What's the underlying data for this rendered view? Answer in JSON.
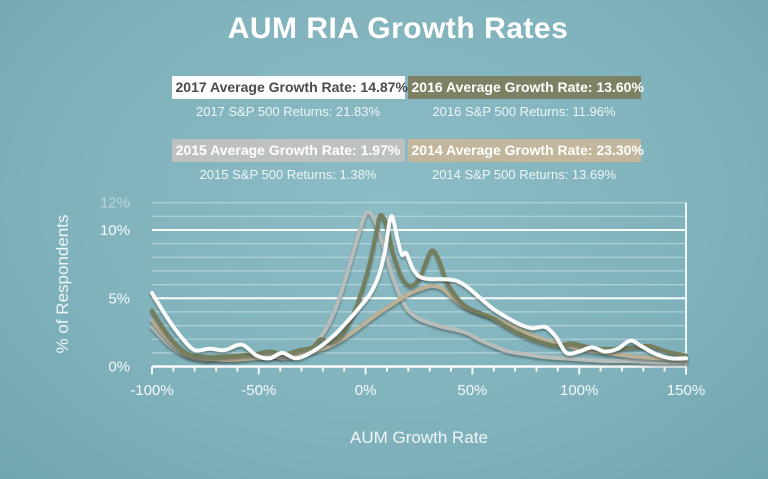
{
  "title": "AUM RIA Growth Rates",
  "legend": {
    "items": [
      {
        "year": "2017",
        "box_label": "2017 Average Growth Rate: 14.87%",
        "sub_label": "2017 S&P 500 Returns: 21.83%",
        "colors": {
          "box_bg": "#fdfdfd",
          "box_text": "#4b4b4d"
        }
      },
      {
        "year": "2016",
        "box_label": "2016 Average Growth Rate: 13.60%",
        "sub_label": "2016 S&P 500 Returns: 11.96%",
        "colors": {
          "box_bg": "#7d8164",
          "box_text": "#ffffff"
        }
      },
      {
        "year": "2015",
        "box_label": "2015 Average Growth Rate: 1.97%",
        "sub_label": "2015 S&P 500 Returns: 1.38%",
        "colors": {
          "box_bg": "#bdc2c0",
          "box_text": "#ffffff"
        }
      },
      {
        "year": "2014",
        "box_label": "2014 Average Growth Rate: 23.30%",
        "sub_label": "2014 S&P 500 Returns: 13.69%",
        "colors": {
          "box_bg": "#c2b79c",
          "box_text": "#ffffff"
        }
      }
    ]
  },
  "chart_data": {
    "type": "line",
    "title": "AUM RIA Growth Rates",
    "xlabel": "AUM Growth Rate",
    "ylabel": "% of Respondents",
    "x_unit": "% AUM growth",
    "y_unit": "% of respondents",
    "xlim": [
      -100,
      150
    ],
    "ylim": [
      0,
      12
    ],
    "grid": {
      "y_step": 1,
      "emphasized_y": [
        5,
        10
      ],
      "color_faint": "rgba(255,255,255,0.38)",
      "color_bright": "rgba(255,255,255,0.95)"
    },
    "x_ticks_major": [
      {
        "value": -100,
        "label": "-100%"
      },
      {
        "value": -50,
        "label": "-50%"
      },
      {
        "value": 0,
        "label": "0%"
      },
      {
        "value": 50,
        "label": "50%"
      },
      {
        "value": 100,
        "label": "100%"
      },
      {
        "value": 150,
        "label": "150%"
      }
    ],
    "x_tick_minor_step": 10,
    "y_axis_labels": [
      {
        "value": 0,
        "label": "0%",
        "faded": false
      },
      {
        "value": 5,
        "label": "5%",
        "faded": false
      },
      {
        "value": 10,
        "label": "10%",
        "faded": false
      },
      {
        "value": 12,
        "label": "12%",
        "faded": true
      }
    ],
    "legend_position": "top",
    "series": [
      {
        "name": "2015 growth-rate distribution",
        "year": "2015",
        "color": "#b7bdbb",
        "points": [
          [
            -100,
            2.9
          ],
          [
            -92,
            1.6
          ],
          [
            -84,
            0.8
          ],
          [
            -76,
            0.5
          ],
          [
            -68,
            0.6
          ],
          [
            -60,
            0.6
          ],
          [
            -53,
            0.8
          ],
          [
            -46,
            0.9
          ],
          [
            -39,
            0.6
          ],
          [
            -32,
            0.8
          ],
          [
            -26,
            1.3
          ],
          [
            -20,
            2.4
          ],
          [
            -15,
            3.9
          ],
          [
            -10,
            6.1
          ],
          [
            -5,
            8.8
          ],
          [
            -1,
            10.8
          ],
          [
            1,
            11.3
          ],
          [
            4,
            10.8
          ],
          [
            8,
            9.0
          ],
          [
            12,
            6.9
          ],
          [
            16,
            5.2
          ],
          [
            20,
            4.1
          ],
          [
            25,
            3.5
          ],
          [
            30,
            3.2
          ],
          [
            36,
            2.9
          ],
          [
            42,
            2.7
          ],
          [
            48,
            2.4
          ],
          [
            54,
            1.9
          ],
          [
            60,
            1.5
          ],
          [
            67,
            1.1
          ],
          [
            75,
            0.9
          ],
          [
            83,
            0.7
          ],
          [
            92,
            0.6
          ],
          [
            102,
            0.5
          ],
          [
            112,
            0.4
          ],
          [
            124,
            0.4
          ],
          [
            136,
            0.3
          ],
          [
            150,
            0.3
          ]
        ]
      },
      {
        "name": "2014 growth-rate distribution",
        "year": "2014",
        "color": "#bbb196",
        "points": [
          [
            -100,
            3.4
          ],
          [
            -92,
            1.9
          ],
          [
            -84,
            0.9
          ],
          [
            -76,
            0.6
          ],
          [
            -68,
            0.5
          ],
          [
            -60,
            0.5
          ],
          [
            -52,
            0.6
          ],
          [
            -44,
            0.7
          ],
          [
            -36,
            0.8
          ],
          [
            -28,
            1.0
          ],
          [
            -20,
            1.3
          ],
          [
            -13,
            1.8
          ],
          [
            -6,
            2.5
          ],
          [
            0,
            3.2
          ],
          [
            7,
            4.0
          ],
          [
            14,
            4.7
          ],
          [
            20,
            5.3
          ],
          [
            26,
            5.7
          ],
          [
            31,
            5.9
          ],
          [
            36,
            5.7
          ],
          [
            41,
            5.0
          ],
          [
            46,
            4.4
          ],
          [
            52,
            4.0
          ],
          [
            58,
            3.7
          ],
          [
            64,
            3.3
          ],
          [
            71,
            2.8
          ],
          [
            78,
            2.3
          ],
          [
            85,
            1.9
          ],
          [
            92,
            1.6
          ],
          [
            100,
            1.3
          ],
          [
            108,
            1.1
          ],
          [
            117,
            0.9
          ],
          [
            127,
            0.7
          ],
          [
            138,
            0.6
          ],
          [
            150,
            0.5
          ]
        ]
      },
      {
        "name": "2016 growth-rate distribution",
        "year": "2016",
        "color": "#747e5c",
        "points": [
          [
            -100,
            4.1
          ],
          [
            -92,
            2.2
          ],
          [
            -84,
            1.0
          ],
          [
            -76,
            0.7
          ],
          [
            -68,
            0.7
          ],
          [
            -60,
            0.8
          ],
          [
            -52,
            0.9
          ],
          [
            -45,
            1.1
          ],
          [
            -38,
            0.9
          ],
          [
            -31,
            1.2
          ],
          [
            -25,
            1.4
          ],
          [
            -21,
            2.0
          ],
          [
            -17,
            1.8
          ],
          [
            -12,
            2.2
          ],
          [
            -7,
            3.4
          ],
          [
            -2,
            5.4
          ],
          [
            2,
            7.6
          ],
          [
            5,
            9.8
          ],
          [
            7,
            11.1
          ],
          [
            10,
            10.2
          ],
          [
            13,
            8.2
          ],
          [
            17,
            6.5
          ],
          [
            21,
            5.9
          ],
          [
            25,
            6.4
          ],
          [
            28,
            7.5
          ],
          [
            31,
            8.5
          ],
          [
            34,
            7.9
          ],
          [
            38,
            6.2
          ],
          [
            43,
            5.0
          ],
          [
            48,
            4.3
          ],
          [
            54,
            3.9
          ],
          [
            60,
            3.5
          ],
          [
            66,
            2.9
          ],
          [
            72,
            2.4
          ],
          [
            78,
            2.0
          ],
          [
            84,
            1.7
          ],
          [
            90,
            1.5
          ],
          [
            96,
            1.7
          ],
          [
            102,
            1.5
          ],
          [
            110,
            1.3
          ],
          [
            118,
            1.3
          ],
          [
            126,
            1.4
          ],
          [
            133,
            1.5
          ],
          [
            141,
            1.1
          ],
          [
            150,
            0.8
          ]
        ]
      },
      {
        "name": "2017 growth-rate distribution",
        "year": "2017",
        "color": "#fafcfc",
        "points": [
          [
            -100,
            5.4
          ],
          [
            -93,
            3.6
          ],
          [
            -86,
            2.1
          ],
          [
            -80,
            1.2
          ],
          [
            -73,
            1.3
          ],
          [
            -66,
            1.2
          ],
          [
            -58,
            1.6
          ],
          [
            -51,
            0.8
          ],
          [
            -45,
            0.6
          ],
          [
            -39,
            1.0
          ],
          [
            -33,
            0.6
          ],
          [
            -27,
            0.9
          ],
          [
            -20,
            1.6
          ],
          [
            -14,
            2.4
          ],
          [
            -8,
            3.4
          ],
          [
            -3,
            4.3
          ],
          [
            2,
            5.3
          ],
          [
            6,
            6.6
          ],
          [
            9,
            8.4
          ],
          [
            12,
            11.0
          ],
          [
            15,
            9.3
          ],
          [
            17,
            8.2
          ],
          [
            19,
            8.3
          ],
          [
            22,
            7.2
          ],
          [
            25,
            6.6
          ],
          [
            30,
            6.4
          ],
          [
            36,
            6.4
          ],
          [
            42,
            6.3
          ],
          [
            47,
            5.9
          ],
          [
            53,
            5.1
          ],
          [
            59,
            4.3
          ],
          [
            65,
            3.7
          ],
          [
            72,
            3.1
          ],
          [
            78,
            2.8
          ],
          [
            84,
            2.9
          ],
          [
            89,
            2.2
          ],
          [
            94,
            1.0
          ],
          [
            100,
            1.1
          ],
          [
            106,
            1.4
          ],
          [
            112,
            1.1
          ],
          [
            118,
            1.3
          ],
          [
            124,
            1.9
          ],
          [
            129,
            1.5
          ],
          [
            136,
            0.9
          ],
          [
            143,
            0.6
          ],
          [
            150,
            0.6
          ]
        ]
      }
    ]
  },
  "colors": {
    "background": "#81b3bd"
  }
}
